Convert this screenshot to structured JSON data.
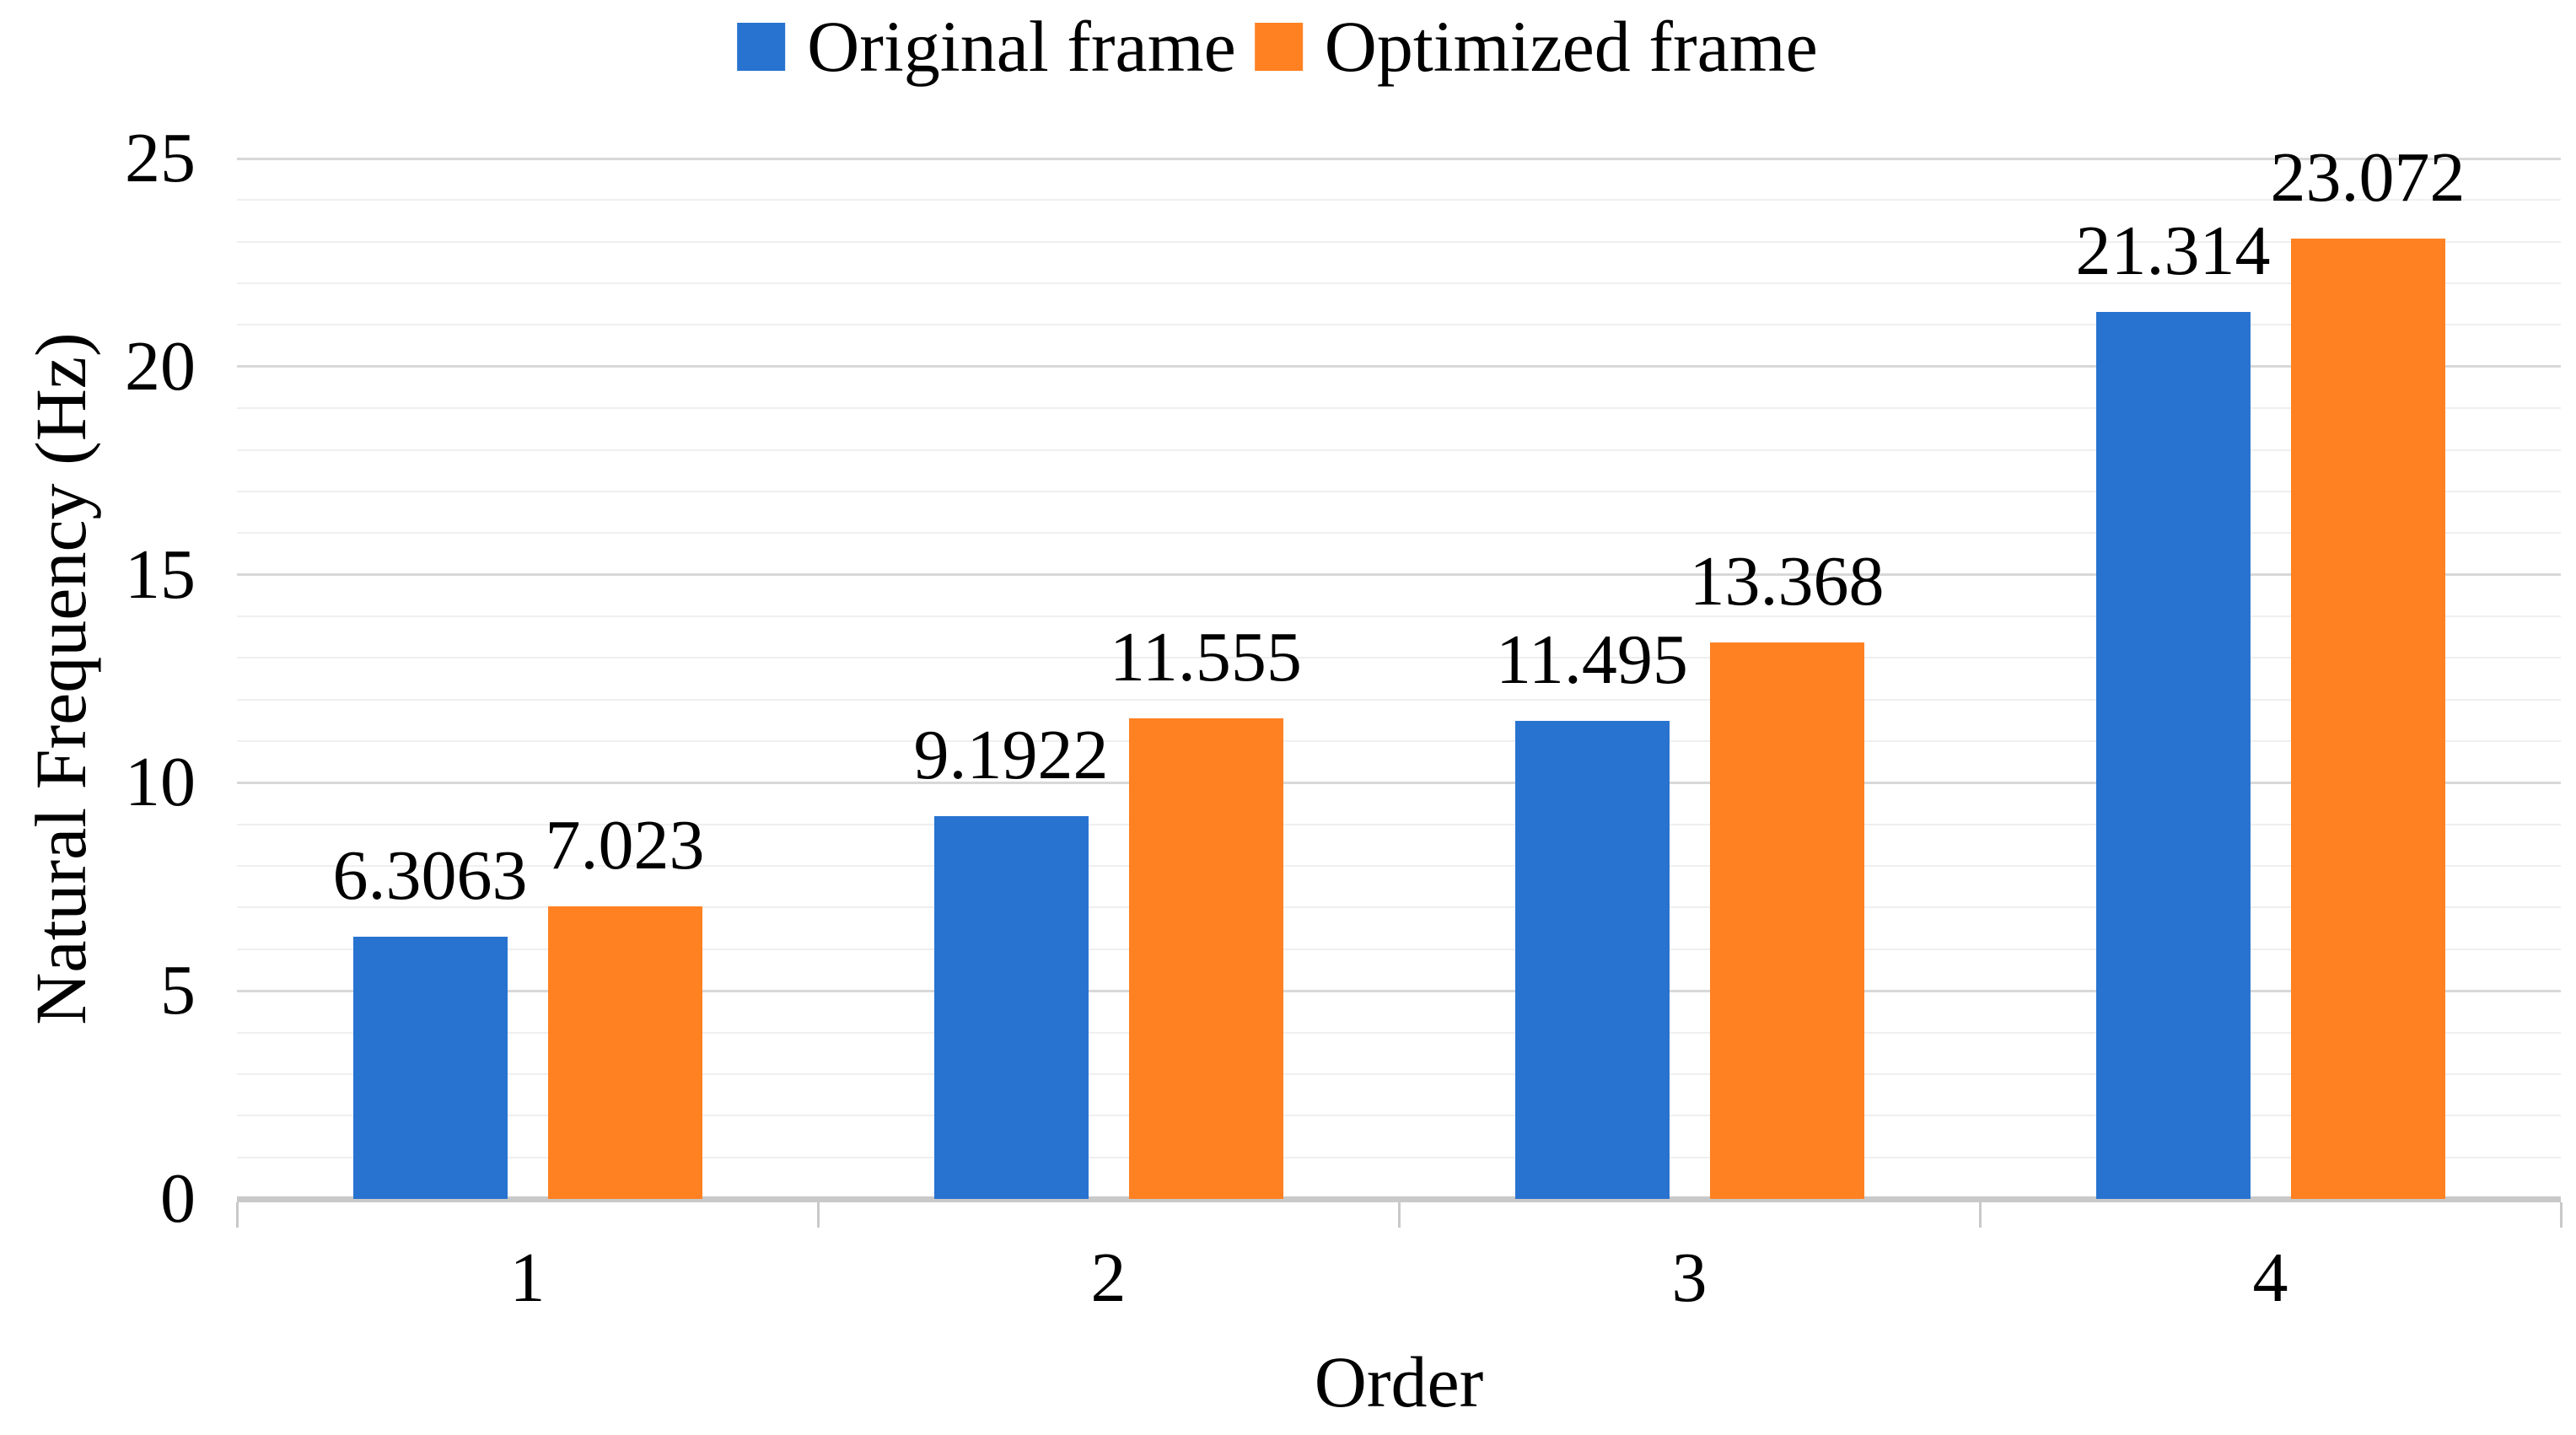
{
  "chart_data": {
    "type": "bar",
    "title": "",
    "categories": [
      "1",
      "2",
      "3",
      "4"
    ],
    "series": [
      {
        "name": "Original frame",
        "color": "#2873D0",
        "values": [
          6.3063,
          9.1922,
          11.495,
          21.314
        ],
        "labels": [
          "6.3063",
          "9.1922",
          "11.495",
          "21.314"
        ]
      },
      {
        "name": "Optimized frame",
        "color": "#FF8122",
        "values": [
          7.023,
          11.555,
          13.368,
          23.072
        ],
        "labels": [
          "7.023",
          "11.555",
          "13.368",
          "23.072"
        ]
      }
    ],
    "xlabel": "Order",
    "ylabel": "Natural Frequency (Hz)",
    "ylim": [
      0,
      25
    ],
    "y_major_ticks": [
      0,
      5,
      10,
      15,
      20,
      25
    ],
    "y_minor_step": 1,
    "grid": "horizontal only; minor line every 1 Hz, major line every 5 Hz",
    "legend_position": "top-center",
    "bar_label_position": "outside-end",
    "style_colors": {
      "gridline_major": "#D8D8D8",
      "gridline_minor": "#EFEFEF",
      "axis_line": "#C9C9C9",
      "tick_mark": "#C9C9C9",
      "text": "#000000",
      "background": "#FFFFFF"
    }
  }
}
